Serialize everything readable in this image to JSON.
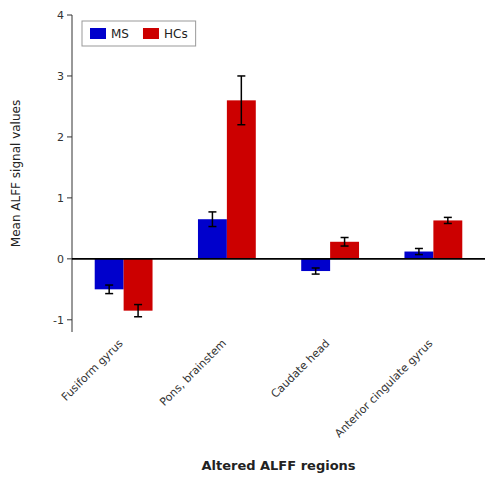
{
  "chart_data": {
    "type": "bar",
    "xlabel": "Altered ALFF regions",
    "ylabel": "Mean ALFF signal values",
    "categories": [
      "Fusiform gyrus",
      "Pons, brainstem",
      "Caudate head",
      "Anterior cingulate gyrus"
    ],
    "series": [
      {
        "name": "MS",
        "color": "#0000cc",
        "values": [
          -0.5,
          0.65,
          -0.2,
          0.12
        ],
        "errors": [
          0.07,
          0.12,
          0.05,
          0.05
        ]
      },
      {
        "name": "HCs",
        "color": "#cc0000",
        "values": [
          -0.85,
          2.6,
          0.28,
          0.63
        ],
        "errors": [
          0.1,
          0.4,
          0.07,
          0.05
        ]
      }
    ],
    "ylim": [
      -1.2,
      4.0
    ],
    "yticks": [
      -1,
      0,
      1,
      2,
      3,
      4
    ],
    "legend": "upper left",
    "grid": false
  }
}
